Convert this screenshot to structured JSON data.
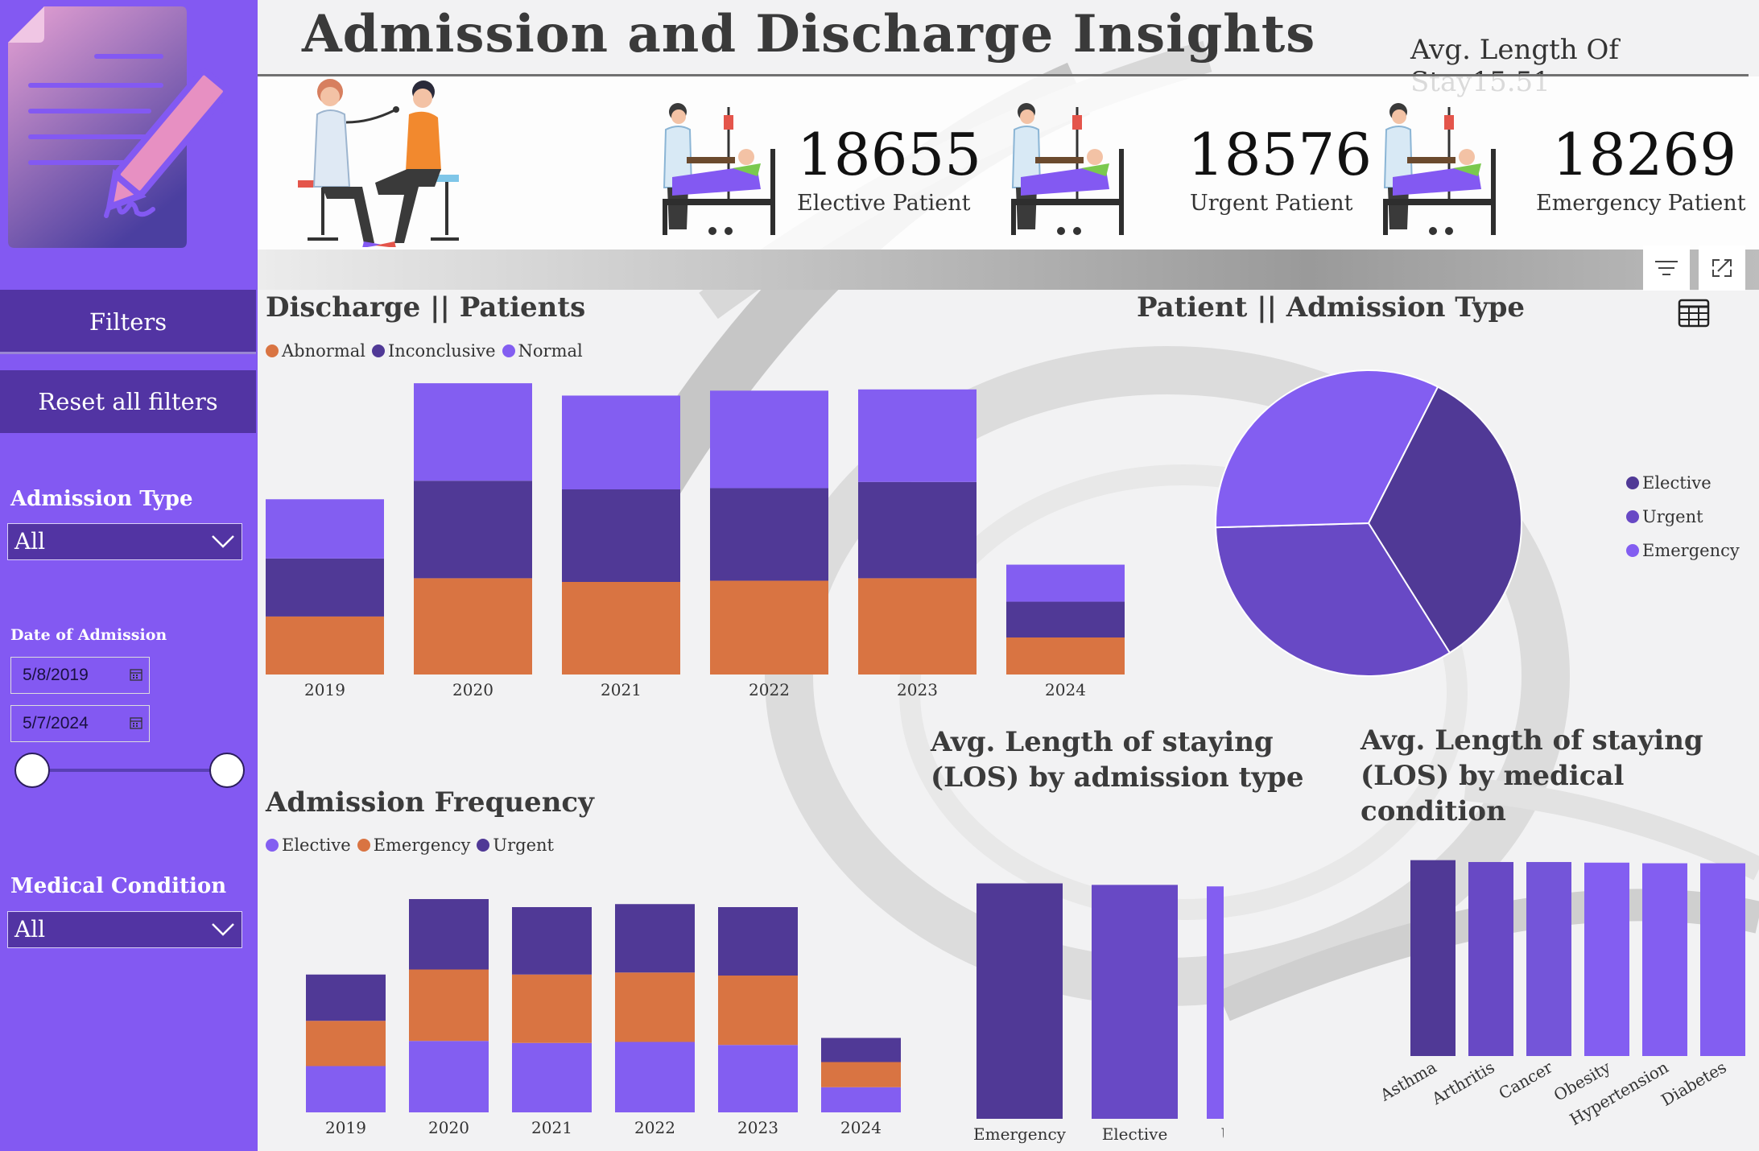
{
  "header": {
    "title": "Admission and Discharge Insights",
    "avg_stay_label": "Avg. Length Of Stay",
    "avg_stay_value": "15.51"
  },
  "kpis": [
    {
      "value": "18655",
      "label": "Elective Patient"
    },
    {
      "value": "18576",
      "label": "Urgent Patient"
    },
    {
      "value": "18269",
      "label": "Emergency Patient"
    }
  ],
  "sidebar": {
    "filters_label": "Filters",
    "reset_label": "Reset all filters",
    "admission_type_label": "Admission Type",
    "admission_type_value": "All",
    "date_label": "Date of Admission",
    "date_from": "5/8/2019",
    "date_to": "5/7/2024",
    "date_slider": {
      "start_fraction": 0,
      "end_fraction": 1
    },
    "medical_condition_label": "Medical Condition",
    "medical_condition_value": "All"
  },
  "colors": {
    "sidebar": "#8359f2",
    "dark_purple": "#503996",
    "mid_purple": "#6849c5",
    "light_purple": "#835ef1",
    "orange": "#d97442"
  },
  "icons": [
    "document-signature-icon",
    "doctor-patient-icon",
    "nurse-bed-icon",
    "filter-icon",
    "expand-icon",
    "table-icon",
    "calendar-icon",
    "chevron-down-icon"
  ],
  "chart_data": [
    {
      "id": "discharge",
      "type": "bar",
      "stacked": true,
      "title": "Discharge || Patients",
      "categories": [
        "2019",
        "2020",
        "2021",
        "2022",
        "2023",
        "2024"
      ],
      "series": [
        {
          "name": "Abnormal",
          "color": "#d97442",
          "values": [
            2350,
            3900,
            3750,
            3800,
            3900,
            1500
          ]
        },
        {
          "name": "Inconclusive",
          "color": "#503996",
          "values": [
            2350,
            3950,
            3750,
            3750,
            3900,
            1450
          ]
        },
        {
          "name": "Normal",
          "color": "#835ef1",
          "values": [
            2400,
            3950,
            3800,
            3950,
            3750,
            1500
          ]
        }
      ],
      "ylim": [
        0,
        12000
      ]
    },
    {
      "id": "admission_type_pie",
      "type": "pie",
      "title": "Patient || Admission Type",
      "categories": [
        "Elective",
        "Urgent",
        "Emergency"
      ],
      "values": [
        18655,
        18576,
        18269
      ],
      "colors": [
        "#503996",
        "#6849c5",
        "#835ef1"
      ]
    },
    {
      "id": "admission_frequency",
      "type": "bar",
      "stacked": true,
      "title": "Admission Frequency",
      "categories": [
        "2019",
        "2020",
        "2021",
        "2022",
        "2023",
        "2024"
      ],
      "series": [
        {
          "name": "Elective",
          "color": "#835ef1",
          "values": [
            2300,
            3550,
            3450,
            3500,
            3350,
            1250
          ]
        },
        {
          "name": "Emergency",
          "color": "#d97442",
          "values": [
            2250,
            3550,
            3400,
            3450,
            3450,
            1250
          ]
        },
        {
          "name": "Urgent",
          "color": "#503996",
          "values": [
            2300,
            3500,
            3350,
            3400,
            3400,
            1200
          ]
        }
      ],
      "ylim": [
        0,
        12000
      ]
    },
    {
      "id": "los_by_type",
      "type": "bar",
      "title": "Avg. Length of staying (LOS) by admission type",
      "categories": [
        "Emergency",
        "Elective",
        "Urgent"
      ],
      "values": [
        15.6,
        15.5,
        15.4
      ],
      "colors": [
        "#503996",
        "#6849c5",
        "#835ef1"
      ],
      "ylim": [
        0,
        16
      ]
    },
    {
      "id": "los_by_condition",
      "type": "bar",
      "title": "Avg. Length of staying (LOS) by medical condition",
      "categories": [
        "Asthma",
        "Arthritis",
        "Cancer",
        "Obesity",
        "Hypertension",
        "Diabetes"
      ],
      "values": [
        15.7,
        15.55,
        15.55,
        15.5,
        15.45,
        15.45
      ],
      "colors": [
        "#503996",
        "#6849c5",
        "#7455d9",
        "#835ef1",
        "#835ef1",
        "#835ef1"
      ],
      "ylim": [
        0,
        16
      ]
    }
  ]
}
